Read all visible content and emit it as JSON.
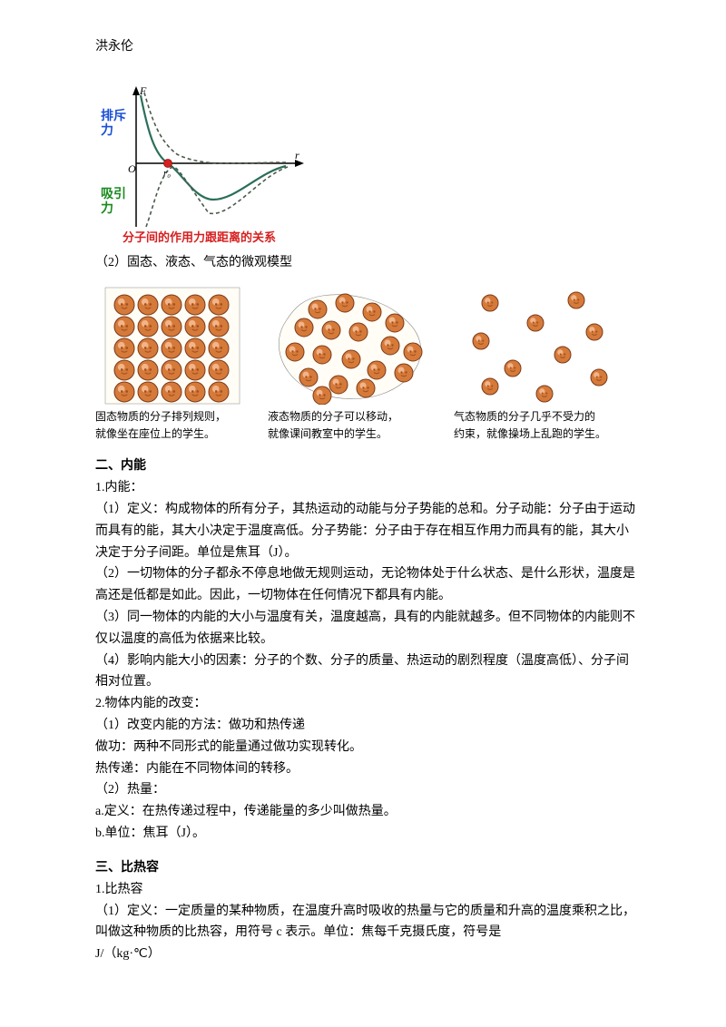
{
  "author": "洪永伦",
  "force_diagram": {
    "label_repulsion": "排斥力",
    "label_attraction": "吸引力",
    "label_origin": "O",
    "label_r0": "r₀",
    "label_F": "F",
    "label_r": "r",
    "title": "分子间的作用力跟距离的关系",
    "colors": {
      "repulsion_text": "#1a4fd6",
      "attraction_text": "#1a8a1f",
      "title_text": "#d62020",
      "axis": "#000000",
      "curve": "#2b6f5a",
      "dashed": "#4b5a4b",
      "point": "#d62020"
    }
  },
  "caption2": "（2）固态、液态、气态的微观模型",
  "molecules": {
    "solid": {
      "caption1": "固态物质的分子排列规则，",
      "caption2": "就像坐在座位上的学生。"
    },
    "liquid": {
      "caption1": "液态物质的分子可以移动，",
      "caption2": "就像课间教室中的学生。"
    },
    "gas": {
      "caption1": "气态物质的分子几乎不受力的",
      "caption2": "约束，就像操场上乱跑的学生。"
    },
    "colors": {
      "ball_fill": "#d67a3a",
      "ball_stroke": "#7a3a1a",
      "highlight": "#f2b488",
      "shadow": "#a0501f"
    }
  },
  "section2": {
    "title": "二、内能",
    "s1": "1.内能：",
    "p1": "（1）定义：构成物体的所有分子，其热运动的动能与分子势能的总和。分子动能：分子由于运动而具有的能，其大小决定于温度高低。分子势能：分子由于存在相互作用力而具有的能，其大小决定于分子间距。单位是焦耳（J）。",
    "p2": "（2）一切物体的分子都永不停息地做无规则运动，无论物体处于什么状态、是什么形状，温度是高还是低都是如此。因此，一切物体在任何情况下都具有内能。",
    "p3": "（3）同一物体的内能的大小与温度有关，温度越高，具有的内能就越多。但不同物体的内能则不仅以温度的高低为依据来比较。",
    "p4": "（4）影响内能大小的因素：分子的个数、分子的质量、热运动的剧烈程度（温度高低）、分子间相对位置。",
    "s2": "2.物体内能的改变：",
    "p5": "（1）改变内能的方法：做功和热传递",
    "p6": "做功：两种不同形式的能量通过做功实现转化。",
    "p7": "热传递：内能在不同物体间的转移。",
    "p8": "（2）热量：",
    "p9": "a.定义：在热传递过程中，传递能量的多少叫做热量。",
    "p10": "b.单位：焦耳（J）。"
  },
  "section3": {
    "title": "三、比热容",
    "s1": "1.比热容",
    "p1": "（1）定义：一定质量的某种物质，在温度升高时吸收的热量与它的质量和升高的温度乘积之比，叫做这种物质的比热容，用符号 c 表示。单位：焦每千克摄氏度，符号是",
    "p2": "J/（kg·℃）"
  }
}
